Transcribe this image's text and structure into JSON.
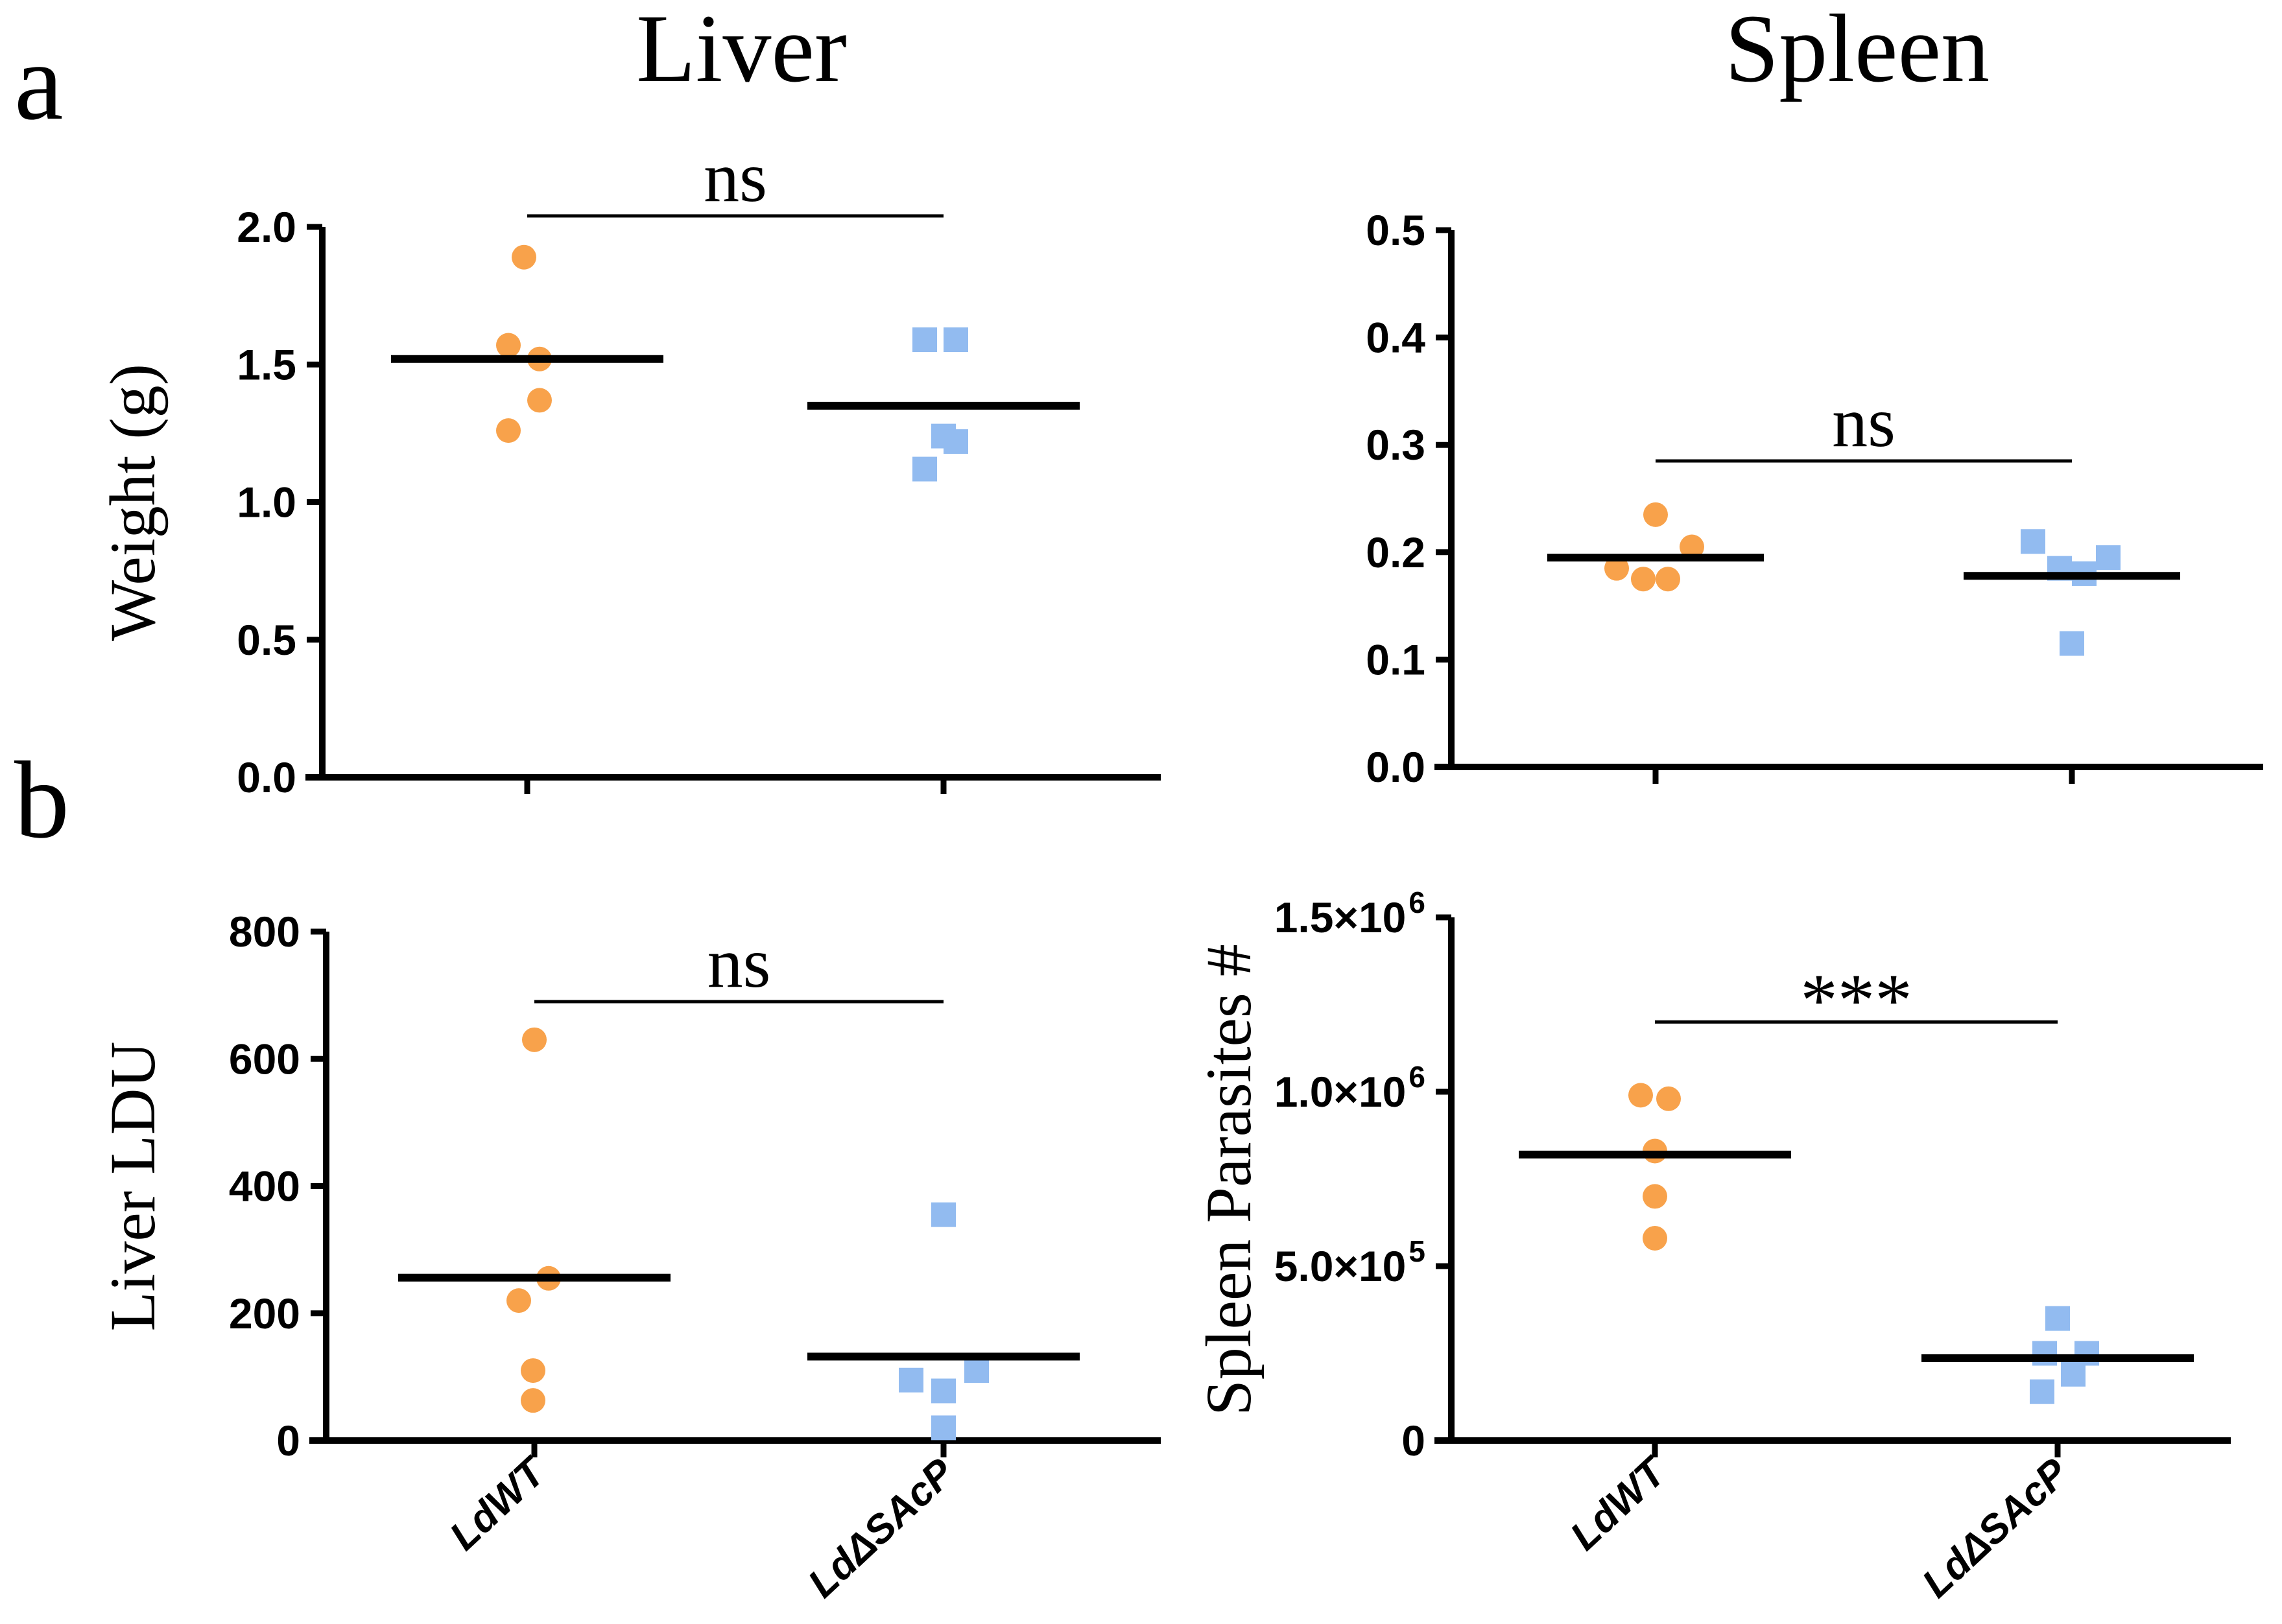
{
  "figure": {
    "panel_a_label": "a",
    "panel_b_label": "b",
    "column_titles": [
      "Liver",
      "Spleen"
    ],
    "group_labels": [
      "LdWT",
      "LdΔSAcP"
    ],
    "colors": {
      "ldwt_marker": "#F8A24B",
      "ldsacp_marker": "#92BBF0",
      "axis": "#000000",
      "background": "#FFFFFF"
    }
  },
  "chart_data": [
    {
      "id": "liver-weight",
      "type": "scatter",
      "panel": "a",
      "column_title": "Liver",
      "ylabel": "Weight (g)",
      "ylim": [
        0,
        2.0
      ],
      "yticks": [
        {
          "v": 0.0,
          "label": "0.0"
        },
        {
          "v": 0.5,
          "label": "0.5"
        },
        {
          "v": 1.0,
          "label": "1.0"
        },
        {
          "v": 1.5,
          "label": "1.5"
        },
        {
          "v": 2.0,
          "label": "2.0"
        }
      ],
      "categories": [
        "LdWT",
        "LdΔSAcP"
      ],
      "series": [
        {
          "name": "LdWT",
          "marker": "circle",
          "color": "#F8A24B",
          "values": [
            1.89,
            1.57,
            1.52,
            1.37,
            1.26
          ],
          "x_jitter": [
            -5,
            -29,
            19,
            19,
            -29
          ],
          "mean": 1.52
        },
        {
          "name": "LdΔSAcP",
          "marker": "square",
          "color": "#92BBF0",
          "values": [
            1.59,
            1.59,
            1.24,
            1.22,
            1.12
          ],
          "x_jitter": [
            -29,
            19,
            0,
            19,
            -29
          ],
          "mean": 1.35
        }
      ],
      "significance": {
        "label": "ns",
        "value": 2.04
      },
      "legend": "none",
      "grid": false
    },
    {
      "id": "spleen-weight",
      "type": "scatter",
      "panel": "a",
      "column_title": "Spleen",
      "ylabel": "",
      "ylim": [
        0,
        0.5
      ],
      "yticks": [
        {
          "v": 0.0,
          "label": "0.0"
        },
        {
          "v": 0.1,
          "label": "0.1"
        },
        {
          "v": 0.2,
          "label": "0.2"
        },
        {
          "v": 0.3,
          "label": "0.3"
        },
        {
          "v": 0.4,
          "label": "0.4"
        },
        {
          "v": 0.5,
          "label": "0.5"
        }
      ],
      "categories": [
        "LdWT",
        "LdΔSAcP"
      ],
      "series": [
        {
          "name": "LdWT",
          "marker": "circle",
          "color": "#F8A24B",
          "values": [
            0.235,
            0.205,
            0.185,
            0.175,
            0.175
          ],
          "x_jitter": [
            0,
            56,
            -60,
            -19,
            19
          ],
          "mean": 0.195
        },
        {
          "name": "LdΔSAcP",
          "marker": "square",
          "color": "#92BBF0",
          "values": [
            0.21,
            0.185,
            0.18,
            0.195,
            0.115
          ],
          "x_jitter": [
            -60,
            -19,
            19,
            56,
            0
          ],
          "mean": 0.178
        }
      ],
      "significance": {
        "label": "ns",
        "value": 0.285
      },
      "legend": "none",
      "grid": false
    },
    {
      "id": "liver-ldu",
      "type": "scatter",
      "panel": "b",
      "column_title": "Liver",
      "ylabel": "Liver LDU",
      "ylim": [
        0,
        800
      ],
      "yticks": [
        {
          "v": 0,
          "label": "0"
        },
        {
          "v": 200,
          "label": "200"
        },
        {
          "v": 400,
          "label": "400"
        },
        {
          "v": 600,
          "label": "600"
        },
        {
          "v": 800,
          "label": "800"
        }
      ],
      "categories": [
        "LdWT",
        "LdΔSAcP"
      ],
      "series": [
        {
          "name": "LdWT",
          "marker": "circle",
          "color": "#F8A24B",
          "values": [
            630,
            255,
            220,
            110,
            63
          ],
          "x_jitter": [
            0,
            22,
            -24,
            -2,
            -2
          ],
          "mean": 256
        },
        {
          "name": "LdΔSAcP",
          "marker": "square",
          "color": "#92BBF0",
          "values": [
            355,
            110,
            95,
            78,
            20
          ],
          "x_jitter": [
            0,
            51,
            -50,
            0,
            0
          ],
          "mean": 132
        }
      ],
      "significance": {
        "label": "ns",
        "value": 690
      },
      "legend": "none",
      "grid": false
    },
    {
      "id": "spleen-parasites",
      "type": "scatter",
      "panel": "b",
      "column_title": "Spleen",
      "ylabel": "Spleen Parasites #",
      "ylim": [
        0,
        1500000
      ],
      "yticks": [
        {
          "v": 0,
          "label": "0"
        },
        {
          "v": 500000,
          "label": "5.0×10^5"
        },
        {
          "v": 1000000,
          "label": "1.0×10^6"
        },
        {
          "v": 1500000,
          "label": "1.5×10^6"
        }
      ],
      "categories": [
        "LdWT",
        "LdΔSAcP"
      ],
      "series": [
        {
          "name": "LdWT",
          "marker": "circle",
          "color": "#F8A24B",
          "values": [
            990000,
            980000,
            830000,
            700000,
            580000
          ],
          "x_jitter": [
            -22,
            21,
            0,
            0,
            0
          ],
          "mean": 820000
        },
        {
          "name": "LdΔSAcP",
          "marker": "square",
          "color": "#92BBF0",
          "values": [
            350000,
            250000,
            250000,
            190000,
            140000
          ],
          "x_jitter": [
            0,
            -20,
            45,
            24,
            -24
          ],
          "mean": 236000
        }
      ],
      "significance": {
        "label": "***",
        "value": 1200000
      },
      "legend": "none",
      "grid": false
    }
  ]
}
